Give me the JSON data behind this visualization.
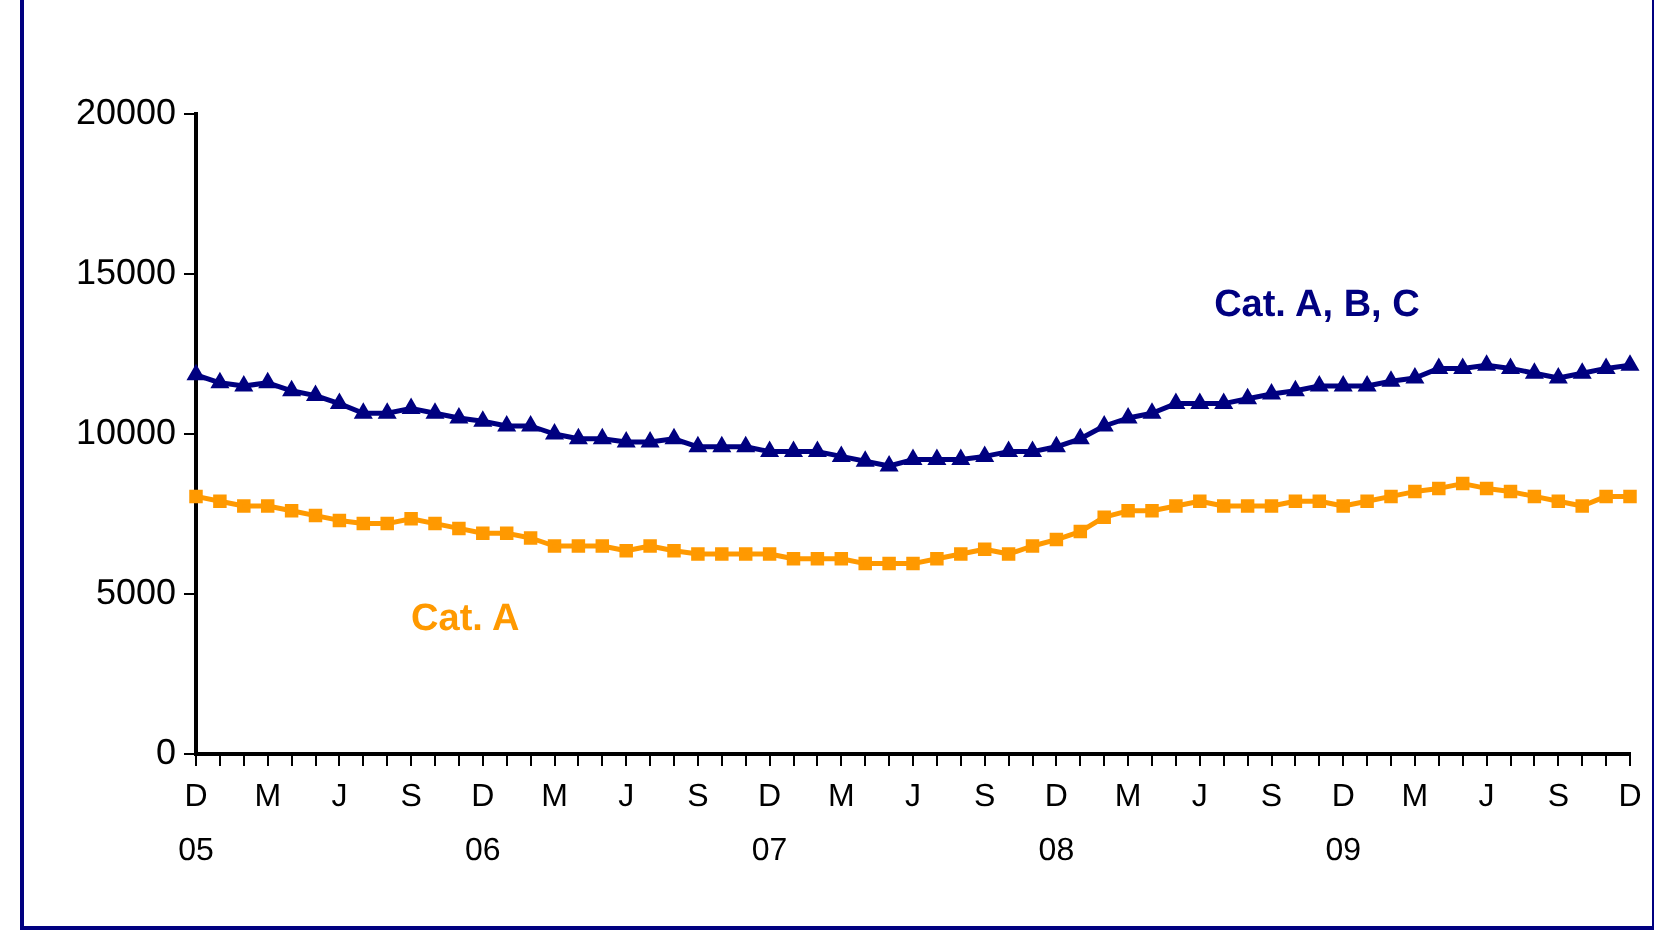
{
  "chart_data": {
    "type": "line",
    "categories": [
      "D\n05",
      null,
      null,
      "M",
      null,
      null,
      "J",
      null,
      null,
      "S",
      null,
      null,
      "D\n06",
      null,
      null,
      "M",
      null,
      null,
      "J",
      null,
      null,
      "S",
      null,
      null,
      "D\n07",
      null,
      null,
      "M",
      null,
      null,
      "J",
      null,
      null,
      "S",
      null,
      null,
      "D\n08",
      null,
      null,
      "M",
      null,
      null,
      "J",
      null,
      null,
      "S",
      null,
      null,
      "D\n09",
      null,
      null,
      "M",
      null,
      null,
      "J",
      null,
      null,
      "S",
      null,
      null,
      "D"
    ],
    "series": [
      {
        "name": "Cat. A, B, C",
        "color": "#000080",
        "marker": "triangle",
        "values": [
          11850,
          11600,
          11500,
          11600,
          11350,
          11200,
          10950,
          10650,
          10650,
          10800,
          10650,
          10500,
          10400,
          10250,
          10250,
          10000,
          9850,
          9850,
          9750,
          9750,
          9850,
          9600,
          9600,
          9600,
          9450,
          9450,
          9450,
          9300,
          9150,
          9000,
          9200,
          9200,
          9200,
          9300,
          9450,
          9450,
          9600,
          9850,
          10250,
          10500,
          10650,
          10950,
          10950,
          10950,
          11100,
          11250,
          11350,
          11500,
          11500,
          11500,
          11650,
          11750,
          12050,
          12050,
          12150,
          12050,
          11900,
          11750,
          11900,
          12050,
          12150
        ]
      },
      {
        "name": "Cat. A",
        "color": "#ff9900",
        "marker": "square",
        "values": [
          8050,
          7900,
          7750,
          7750,
          7600,
          7450,
          7300,
          7200,
          7200,
          7350,
          7200,
          7050,
          6900,
          6900,
          6750,
          6500,
          6500,
          6500,
          6350,
          6500,
          6350,
          6250,
          6250,
          6250,
          6250,
          6100,
          6100,
          6100,
          5950,
          5950,
          5950,
          6100,
          6250,
          6400,
          6250,
          6500,
          6700,
          6950,
          7400,
          7600,
          7600,
          7750,
          7900,
          7750,
          7750,
          7750,
          7900,
          7900,
          7750,
          7900,
          8050,
          8200,
          8300,
          8450,
          8300,
          8200,
          8050,
          7900,
          7750,
          8050,
          8050
        ]
      }
    ],
    "ylim": [
      0,
      20000
    ],
    "yticks": [
      0,
      5000,
      10000,
      15000,
      20000
    ],
    "grid": false,
    "legend": false
  }
}
